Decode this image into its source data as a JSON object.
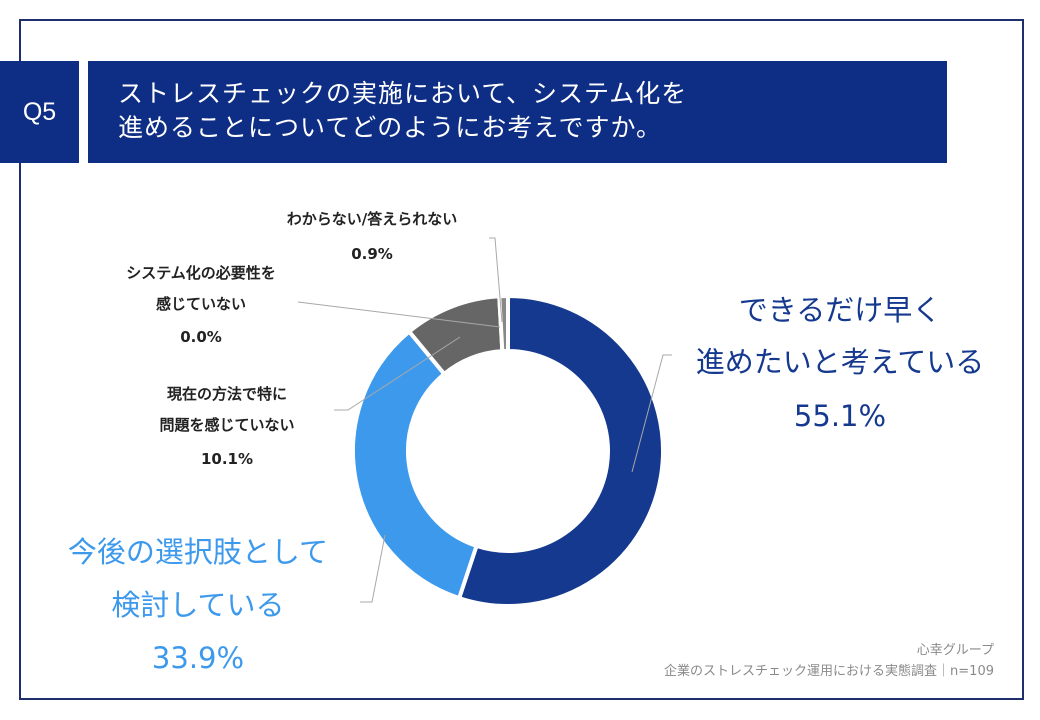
{
  "question": {
    "number": "Q5",
    "line1": "ストレスチェックの実施において、システム化を",
    "line2": "進めることについてどのようにお考えですか。"
  },
  "chart_data": {
    "type": "pie",
    "donut": true,
    "title": "ストレスチェックの実施において、システム化を進めることについてどのようにお考えですか。",
    "slices": [
      {
        "lines": [
          "できるだけ早く",
          "進めたいと考えている"
        ],
        "value": 55.1,
        "value_label": "55.1%",
        "color": "#15398f"
      },
      {
        "lines": [
          "今後の選択肢として",
          "検討している"
        ],
        "value": 33.9,
        "value_label": "33.9%",
        "color": "#3d99ec"
      },
      {
        "lines": [
          "現在の方法で特に",
          "問題を感じていない"
        ],
        "value": 10.1,
        "value_label": "10.1%",
        "color": "#666666"
      },
      {
        "lines": [
          "システム化の必要性を",
          "感じていない"
        ],
        "value": 0.0,
        "value_label": "0.0%",
        "color": "#444444"
      },
      {
        "lines": [
          "わからない/答えられない"
        ],
        "value": 0.9,
        "value_label": "0.9%",
        "color": "#888888"
      }
    ]
  },
  "source": {
    "company": "心幸グループ",
    "survey": "企業のストレスチェック運用における実態調査｜n=109"
  }
}
